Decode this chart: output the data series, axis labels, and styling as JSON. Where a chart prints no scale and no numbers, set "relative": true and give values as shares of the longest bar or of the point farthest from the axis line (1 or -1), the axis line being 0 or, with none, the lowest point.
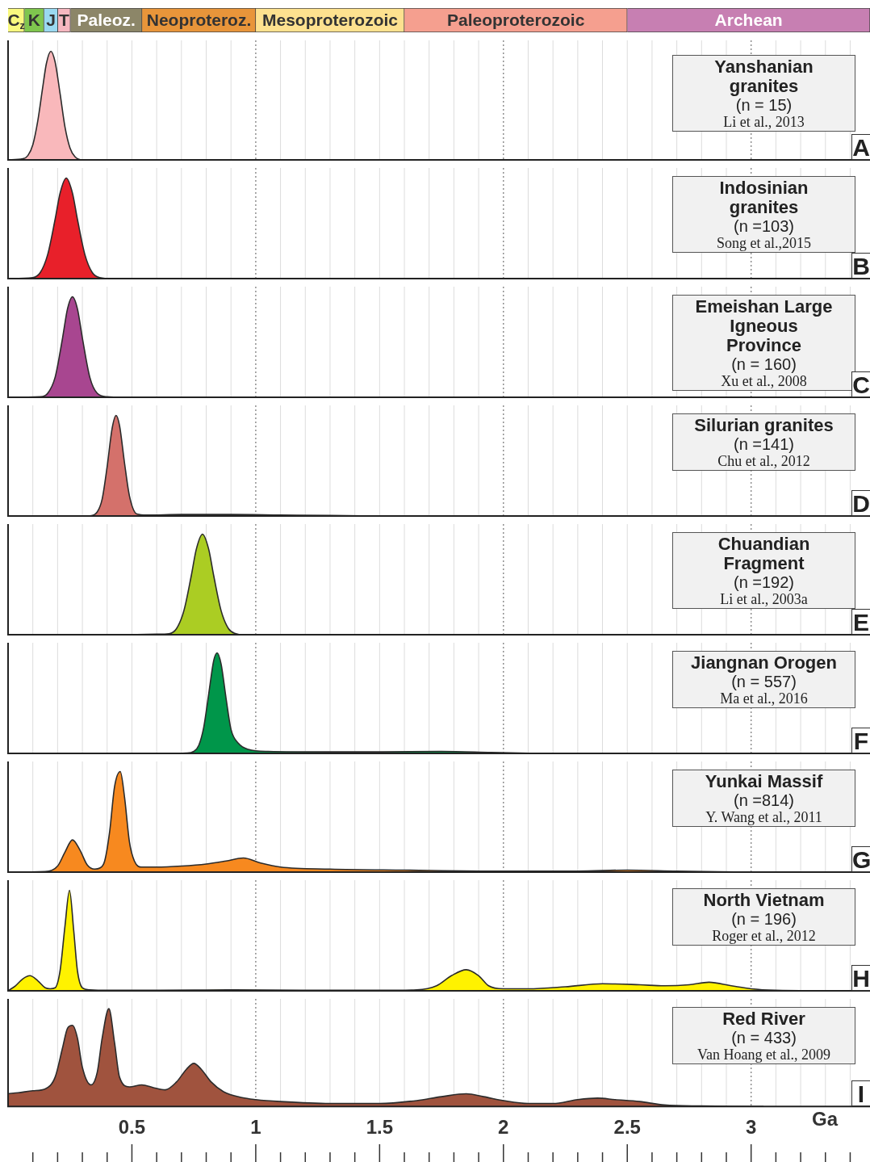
{
  "chart_data": [
    {
      "type": "bar",
      "orientation": "horizontal",
      "stacked": true,
      "categories": [
        null
      ],
      "xlim": [
        0,
        3.48
      ],
      "tick_labels": false,
      "series": [
        {
          "name": "C$_{z}$",
          "color": "#f9f97f",
          "values": [
            0.066
          ]
        },
        {
          "name": "K",
          "color": "#7fc64e",
          "values": [
            0.079
          ]
        },
        {
          "name": "J",
          "color": "#9ad9f0",
          "values": [
            0.056
          ]
        },
        {
          "name": "T",
          "color": "#f5b7c0",
          "values": [
            0.051
          ]
        },
        {
          "name": "Paleoz.",
          "color": "#8c8668",
          "values": [
            0.289
          ]
        },
        {
          "name": "Neoproteroz.",
          "color": "#e8953a",
          "values": [
            0.459
          ]
        },
        {
          "name": "Mesoproterozoic",
          "color": "#fde18f",
          "values": [
            0.6
          ]
        },
        {
          "name": "Paleoproterozoic",
          "color": "#f59f8f",
          "values": [
            0.9
          ]
        },
        {
          "name": "Archean",
          "color": "#c77fb2",
          "values": [
            0.98
          ]
        }
      ]
    },
    {
      "type": "area",
      "title": "Yanshanian granites",
      "subtitle": "(n = 15)",
      "annotations": [
        "Li et al., 2013",
        "A"
      ],
      "color": "#f9b8bb",
      "relative": true,
      "xlim": [
        0,
        3.48
      ],
      "grid": "x",
      "tick_labels": false,
      "xticks": [
        {
          "value": 0.1,
          "label": null
        },
        {
          "value": 0.2,
          "label": null
        },
        {
          "value": 0.3,
          "label": null
        },
        {
          "value": 0.4,
          "label": null
        },
        0.5,
        {
          "value": 0.6,
          "label": null
        },
        {
          "value": 0.7,
          "label": null
        },
        {
          "value": 0.8,
          "label": null
        },
        {
          "value": 0.9,
          "label": null
        },
        1,
        {
          "value": 1.1,
          "label": null
        },
        {
          "value": 1.2,
          "label": null
        },
        {
          "value": 1.3,
          "label": null
        },
        {
          "value": 1.4,
          "label": null
        },
        1.5,
        {
          "value": 1.6,
          "label": null
        },
        {
          "value": 1.7,
          "label": null
        },
        {
          "value": 1.8,
          "label": null
        },
        {
          "value": 1.9,
          "label": null
        },
        2,
        {
          "value": 2.1,
          "label": null
        },
        {
          "value": 2.2,
          "label": null
        },
        {
          "value": 2.3,
          "label": null
        },
        {
          "value": 2.4,
          "label": null
        },
        2.5,
        {
          "value": 2.6,
          "label": null
        },
        {
          "value": 2.7,
          "label": null
        },
        {
          "value": 2.8,
          "label": null
        },
        {
          "value": 2.9,
          "label": null
        },
        3,
        {
          "value": 3.1,
          "label": null
        },
        {
          "value": 3.2,
          "label": null
        },
        {
          "value": 3.3,
          "label": null
        },
        {
          "value": 3.4,
          "label": null
        }
      ],
      "x": [
        0,
        0.06,
        0.08,
        0.1,
        0.12,
        0.14,
        0.155,
        0.173,
        0.19,
        0.21,
        0.23,
        0.25,
        0.27,
        0.3,
        0.32
      ],
      "values": [
        0,
        0.01,
        0.04,
        0.14,
        0.36,
        0.67,
        0.89,
        1,
        0.9,
        0.61,
        0.3,
        0.11,
        0.03,
        0,
        0
      ]
    },
    {
      "type": "area",
      "title": "Indosinian granites",
      "subtitle": "(n =103)",
      "annotations": [
        "Song et al.,2015",
        "B"
      ],
      "color": "#e8202a",
      "relative": true,
      "xlim": [
        0,
        3.48
      ],
      "grid": "x",
      "tick_labels": false,
      "xticks": [
        {
          "value": 0.1,
          "label": null
        },
        {
          "value": 0.2,
          "label": null
        },
        {
          "value": 0.3,
          "label": null
        },
        {
          "value": 0.4,
          "label": null
        },
        0.5,
        {
          "value": 0.6,
          "label": null
        },
        {
          "value": 0.7,
          "label": null
        },
        {
          "value": 0.8,
          "label": null
        },
        {
          "value": 0.9,
          "label": null
        },
        1,
        {
          "value": 1.1,
          "label": null
        },
        {
          "value": 1.2,
          "label": null
        },
        {
          "value": 1.3,
          "label": null
        },
        {
          "value": 1.4,
          "label": null
        },
        1.5,
        {
          "value": 1.6,
          "label": null
        },
        {
          "value": 1.7,
          "label": null
        },
        {
          "value": 1.8,
          "label": null
        },
        {
          "value": 1.9,
          "label": null
        },
        2,
        {
          "value": 2.1,
          "label": null
        },
        {
          "value": 2.2,
          "label": null
        },
        {
          "value": 2.3,
          "label": null
        },
        {
          "value": 2.4,
          "label": null
        },
        2.5,
        {
          "value": 2.6,
          "label": null
        },
        {
          "value": 2.7,
          "label": null
        },
        {
          "value": 2.8,
          "label": null
        },
        {
          "value": 2.9,
          "label": null
        },
        3,
        {
          "value": 3.1,
          "label": null
        },
        {
          "value": 3.2,
          "label": null
        },
        {
          "value": 3.3,
          "label": null
        },
        {
          "value": 3.4,
          "label": null
        }
      ],
      "x": [
        0,
        0.1,
        0.13,
        0.16,
        0.19,
        0.21,
        0.235,
        0.26,
        0.28,
        0.31,
        0.34,
        0.37,
        0.42,
        0.49
      ],
      "values": [
        0,
        0.01,
        0.06,
        0.24,
        0.59,
        0.85,
        1,
        0.85,
        0.59,
        0.24,
        0.06,
        0.01,
        0,
        0
      ]
    },
    {
      "type": "area",
      "title": "Emeishan Large Igneous Province",
      "subtitle": "(n = 160)",
      "annotations": [
        "Xu et al., 2008",
        "C"
      ],
      "color": "#a84690",
      "relative": true,
      "xlim": [
        0,
        3.48
      ],
      "grid": "x",
      "tick_labels": false,
      "xticks": [
        {
          "value": 0.1,
          "label": null
        },
        {
          "value": 0.2,
          "label": null
        },
        {
          "value": 0.3,
          "label": null
        },
        {
          "value": 0.4,
          "label": null
        },
        0.5,
        {
          "value": 0.6,
          "label": null
        },
        {
          "value": 0.7,
          "label": null
        },
        {
          "value": 0.8,
          "label": null
        },
        {
          "value": 0.9,
          "label": null
        },
        1,
        {
          "value": 1.1,
          "label": null
        },
        {
          "value": 1.2,
          "label": null
        },
        {
          "value": 1.3,
          "label": null
        },
        {
          "value": 1.4,
          "label": null
        },
        1.5,
        {
          "value": 1.6,
          "label": null
        },
        {
          "value": 1.7,
          "label": null
        },
        {
          "value": 1.8,
          "label": null
        },
        {
          "value": 1.9,
          "label": null
        },
        2,
        {
          "value": 2.1,
          "label": null
        },
        {
          "value": 2.2,
          "label": null
        },
        {
          "value": 2.3,
          "label": null
        },
        {
          "value": 2.4,
          "label": null
        },
        2.5,
        {
          "value": 2.6,
          "label": null
        },
        {
          "value": 2.7,
          "label": null
        },
        {
          "value": 2.8,
          "label": null
        },
        {
          "value": 2.9,
          "label": null
        },
        3,
        {
          "value": 3.1,
          "label": null
        },
        {
          "value": 3.2,
          "label": null
        },
        {
          "value": 3.3,
          "label": null
        },
        {
          "value": 3.4,
          "label": null
        }
      ],
      "x": [
        0,
        0.13,
        0.16,
        0.19,
        0.22,
        0.24,
        0.26,
        0.28,
        0.3,
        0.33,
        0.36,
        0.4,
        0.48
      ],
      "values": [
        0,
        0.005,
        0.04,
        0.2,
        0.59,
        0.88,
        1,
        0.88,
        0.59,
        0.2,
        0.04,
        0.005,
        0
      ]
    },
    {
      "type": "area",
      "title": "Silurian granites",
      "subtitle": "(n =141)",
      "annotations": [
        "Chu et al., 2012",
        "D"
      ],
      "color": "#d4716b",
      "relative": true,
      "xlim": [
        0,
        3.48
      ],
      "grid": "x",
      "tick_labels": false,
      "xticks": [
        {
          "value": 0.1,
          "label": null
        },
        {
          "value": 0.2,
          "label": null
        },
        {
          "value": 0.3,
          "label": null
        },
        {
          "value": 0.4,
          "label": null
        },
        0.5,
        {
          "value": 0.6,
          "label": null
        },
        {
          "value": 0.7,
          "label": null
        },
        {
          "value": 0.8,
          "label": null
        },
        {
          "value": 0.9,
          "label": null
        },
        1,
        {
          "value": 1.1,
          "label": null
        },
        {
          "value": 1.2,
          "label": null
        },
        {
          "value": 1.3,
          "label": null
        },
        {
          "value": 1.4,
          "label": null
        },
        1.5,
        {
          "value": 1.6,
          "label": null
        },
        {
          "value": 1.7,
          "label": null
        },
        {
          "value": 1.8,
          "label": null
        },
        {
          "value": 1.9,
          "label": null
        },
        2,
        {
          "value": 2.1,
          "label": null
        },
        {
          "value": 2.2,
          "label": null
        },
        {
          "value": 2.3,
          "label": null
        },
        {
          "value": 2.4,
          "label": null
        },
        2.5,
        {
          "value": 2.6,
          "label": null
        },
        {
          "value": 2.7,
          "label": null
        },
        {
          "value": 2.8,
          "label": null
        },
        {
          "value": 2.9,
          "label": null
        },
        3,
        {
          "value": 3.1,
          "label": null
        },
        {
          "value": 3.2,
          "label": null
        },
        {
          "value": 3.3,
          "label": null
        },
        {
          "value": 3.4,
          "label": null
        }
      ],
      "x": [
        0.28,
        0.33,
        0.36,
        0.38,
        0.4,
        0.42,
        0.436,
        0.45,
        0.47,
        0.49,
        0.52,
        0.56,
        0.7,
        0.9,
        1.1,
        1.3,
        1.45
      ],
      "values": [
        0,
        0.002,
        0.04,
        0.17,
        0.49,
        0.87,
        1,
        0.9,
        0.53,
        0.2,
        0.02,
        0.01,
        0.015,
        0.015,
        0.01,
        0.005,
        0
      ]
    },
    {
      "type": "area",
      "title": "Chuandian Fragment",
      "subtitle": "(n =192)",
      "annotations": [
        "Li et al., 2003a",
        "E"
      ],
      "color": "#abcd23",
      "relative": true,
      "xlim": [
        0,
        3.48
      ],
      "grid": "x",
      "tick_labels": false,
      "xticks": [
        {
          "value": 0.1,
          "label": null
        },
        {
          "value": 0.2,
          "label": null
        },
        {
          "value": 0.3,
          "label": null
        },
        {
          "value": 0.4,
          "label": null
        },
        0.5,
        {
          "value": 0.6,
          "label": null
        },
        {
          "value": 0.7,
          "label": null
        },
        {
          "value": 0.8,
          "label": null
        },
        {
          "value": 0.9,
          "label": null
        },
        1,
        {
          "value": 1.1,
          "label": null
        },
        {
          "value": 1.2,
          "label": null
        },
        {
          "value": 1.3,
          "label": null
        },
        {
          "value": 1.4,
          "label": null
        },
        1.5,
        {
          "value": 1.6,
          "label": null
        },
        {
          "value": 1.7,
          "label": null
        },
        {
          "value": 1.8,
          "label": null
        },
        {
          "value": 1.9,
          "label": null
        },
        2,
        {
          "value": 2.1,
          "label": null
        },
        {
          "value": 2.2,
          "label": null
        },
        {
          "value": 2.3,
          "label": null
        },
        {
          "value": 2.4,
          "label": null
        },
        2.5,
        {
          "value": 2.6,
          "label": null
        },
        {
          "value": 2.7,
          "label": null
        },
        {
          "value": 2.8,
          "label": null
        },
        {
          "value": 2.9,
          "label": null
        },
        3,
        {
          "value": 3.1,
          "label": null
        },
        {
          "value": 3.2,
          "label": null
        },
        {
          "value": 3.3,
          "label": null
        },
        {
          "value": 3.4,
          "label": null
        }
      ],
      "x": [
        0.48,
        0.6,
        0.65,
        0.68,
        0.71,
        0.74,
        0.76,
        0.785,
        0.81,
        0.83,
        0.86,
        0.89,
        0.92,
        0.95,
        0.99
      ],
      "values": [
        0,
        0.005,
        0.01,
        0.06,
        0.24,
        0.59,
        0.85,
        1,
        0.85,
        0.59,
        0.24,
        0.06,
        0.01,
        0,
        0
      ]
    },
    {
      "type": "area",
      "title": "Jiangnan Orogen",
      "subtitle": "(n = 557)",
      "annotations": [
        "Ma et al., 2016",
        "F"
      ],
      "color": "#00964a",
      "relative": true,
      "xlim": [
        0,
        3.48
      ],
      "grid": "x",
      "tick_labels": false,
      "xticks": [
        {
          "value": 0.1,
          "label": null
        },
        {
          "value": 0.2,
          "label": null
        },
        {
          "value": 0.3,
          "label": null
        },
        {
          "value": 0.4,
          "label": null
        },
        0.5,
        {
          "value": 0.6,
          "label": null
        },
        {
          "value": 0.7,
          "label": null
        },
        {
          "value": 0.8,
          "label": null
        },
        {
          "value": 0.9,
          "label": null
        },
        1,
        {
          "value": 1.1,
          "label": null
        },
        {
          "value": 1.2,
          "label": null
        },
        {
          "value": 1.3,
          "label": null
        },
        {
          "value": 1.4,
          "label": null
        },
        1.5,
        {
          "value": 1.6,
          "label": null
        },
        {
          "value": 1.7,
          "label": null
        },
        {
          "value": 1.8,
          "label": null
        },
        {
          "value": 1.9,
          "label": null
        },
        2,
        {
          "value": 2.1,
          "label": null
        },
        {
          "value": 2.2,
          "label": null
        },
        {
          "value": 2.3,
          "label": null
        },
        {
          "value": 2.4,
          "label": null
        },
        2.5,
        {
          "value": 2.6,
          "label": null
        },
        {
          "value": 2.7,
          "label": null
        },
        {
          "value": 2.8,
          "label": null
        },
        {
          "value": 2.9,
          "label": null
        },
        3,
        {
          "value": 3.1,
          "label": null
        },
        {
          "value": 3.2,
          "label": null
        },
        {
          "value": 3.3,
          "label": null
        },
        {
          "value": 3.4,
          "label": null
        }
      ],
      "x": [
        0.62,
        0.72,
        0.75,
        0.77,
        0.79,
        0.81,
        0.83,
        0.844,
        0.86,
        0.88,
        0.9,
        0.93,
        0.97,
        1.05,
        1.3,
        1.5,
        1.75,
        1.95,
        2.14
      ],
      "values": [
        0,
        0.003,
        0.02,
        0.08,
        0.26,
        0.59,
        0.92,
        1,
        0.89,
        0.55,
        0.24,
        0.1,
        0.04,
        0.02,
        0.015,
        0.015,
        0.02,
        0.01,
        0
      ]
    },
    {
      "type": "area",
      "title": "Yunkai Massif",
      "subtitle": "(n =814)",
      "annotations": [
        "Y. Wang et al., 2011",
        "G"
      ],
      "color": "#f7891f",
      "relative": true,
      "xlim": [
        0,
        3.48
      ],
      "grid": "x",
      "tick_labels": false,
      "xticks": [
        {
          "value": 0.1,
          "label": null
        },
        {
          "value": 0.2,
          "label": null
        },
        {
          "value": 0.3,
          "label": null
        },
        {
          "value": 0.4,
          "label": null
        },
        0.5,
        {
          "value": 0.6,
          "label": null
        },
        {
          "value": 0.7,
          "label": null
        },
        {
          "value": 0.8,
          "label": null
        },
        {
          "value": 0.9,
          "label": null
        },
        1,
        {
          "value": 1.1,
          "label": null
        },
        {
          "value": 1.2,
          "label": null
        },
        {
          "value": 1.3,
          "label": null
        },
        {
          "value": 1.4,
          "label": null
        },
        1.5,
        {
          "value": 1.6,
          "label": null
        },
        {
          "value": 1.7,
          "label": null
        },
        {
          "value": 1.8,
          "label": null
        },
        {
          "value": 1.9,
          "label": null
        },
        2,
        {
          "value": 2.1,
          "label": null
        },
        {
          "value": 2.2,
          "label": null
        },
        {
          "value": 2.3,
          "label": null
        },
        {
          "value": 2.4,
          "label": null
        },
        2.5,
        {
          "value": 2.6,
          "label": null
        },
        {
          "value": 2.7,
          "label": null
        },
        {
          "value": 2.8,
          "label": null
        },
        {
          "value": 2.9,
          "label": null
        },
        3,
        {
          "value": 3.1,
          "label": null
        },
        {
          "value": 3.2,
          "label": null
        },
        {
          "value": 3.3,
          "label": null
        },
        {
          "value": 3.4,
          "label": null
        }
      ],
      "x": [
        0,
        0.15,
        0.2,
        0.23,
        0.26,
        0.29,
        0.32,
        0.35,
        0.37,
        0.39,
        0.41,
        0.43,
        0.453,
        0.47,
        0.49,
        0.51,
        0.54,
        0.6,
        0.7,
        0.8,
        0.88,
        0.95,
        1.02,
        1.1,
        1.3,
        1.6,
        2.0,
        2.3,
        2.5,
        2.7,
        3.0
      ],
      "values": [
        0,
        0.005,
        0.06,
        0.2,
        0.32,
        0.22,
        0.07,
        0.03,
        0.04,
        0.11,
        0.4,
        0.85,
        1,
        0.75,
        0.3,
        0.11,
        0.05,
        0.05,
        0.06,
        0.08,
        0.11,
        0.14,
        0.09,
        0.05,
        0.03,
        0.02,
        0.01,
        0.01,
        0.02,
        0.01,
        0
      ]
    },
    {
      "type": "area",
      "title": "North Vietnam",
      "subtitle": "(n = 196)",
      "annotations": [
        "Roger et al., 2012",
        "H"
      ],
      "color": "#fff200",
      "relative": true,
      "xlim": [
        0,
        3.48
      ],
      "grid": "x",
      "tick_labels": false,
      "xticks": [
        {
          "value": 0.1,
          "label": null
        },
        {
          "value": 0.2,
          "label": null
        },
        {
          "value": 0.3,
          "label": null
        },
        {
          "value": 0.4,
          "label": null
        },
        0.5,
        {
          "value": 0.6,
          "label": null
        },
        {
          "value": 0.7,
          "label": null
        },
        {
          "value": 0.8,
          "label": null
        },
        {
          "value": 0.9,
          "label": null
        },
        1,
        {
          "value": 1.1,
          "label": null
        },
        {
          "value": 1.2,
          "label": null
        },
        {
          "value": 1.3,
          "label": null
        },
        {
          "value": 1.4,
          "label": null
        },
        1.5,
        {
          "value": 1.6,
          "label": null
        },
        {
          "value": 1.7,
          "label": null
        },
        {
          "value": 1.8,
          "label": null
        },
        {
          "value": 1.9,
          "label": null
        },
        2,
        {
          "value": 2.1,
          "label": null
        },
        {
          "value": 2.2,
          "label": null
        },
        {
          "value": 2.3,
          "label": null
        },
        {
          "value": 2.4,
          "label": null
        },
        2.5,
        {
          "value": 2.6,
          "label": null
        },
        {
          "value": 2.7,
          "label": null
        },
        {
          "value": 2.8,
          "label": null
        },
        {
          "value": 2.9,
          "label": null
        },
        3,
        {
          "value": 3.1,
          "label": null
        },
        {
          "value": 3.2,
          "label": null
        },
        {
          "value": 3.3,
          "label": null
        },
        {
          "value": 3.4,
          "label": null
        }
      ],
      "x": [
        0,
        0.03,
        0.06,
        0.088,
        0.12,
        0.15,
        0.17,
        0.19,
        0.21,
        0.23,
        0.248,
        0.265,
        0.28,
        0.3,
        0.33,
        0.4,
        0.6,
        0.9,
        1.2,
        1.5,
        1.65,
        1.73,
        1.79,
        1.85,
        1.9,
        1.94,
        2.0,
        2.1,
        2.25,
        2.4,
        2.55,
        2.65,
        2.75,
        2.83,
        2.92,
        3.0,
        3.1,
        3.3
      ],
      "values": [
        0,
        0.05,
        0.12,
        0.15,
        0.1,
        0.03,
        0.02,
        0.03,
        0.2,
        0.65,
        1,
        0.6,
        0.2,
        0.03,
        0.01,
        0.005,
        0.005,
        0.01,
        0.005,
        0.005,
        0.01,
        0.05,
        0.15,
        0.21,
        0.15,
        0.05,
        0.02,
        0.02,
        0.04,
        0.07,
        0.06,
        0.05,
        0.06,
        0.085,
        0.05,
        0.02,
        0.005,
        0
      ]
    },
    {
      "type": "area",
      "title": "Red River",
      "subtitle": "(n = 433)",
      "annotations": [
        "Van Hoang et al., 2009",
        "I"
      ],
      "color": "#a0533e",
      "relative": true,
      "xlim": [
        0,
        3.48
      ],
      "grid": "x",
      "tick_labels": "x",
      "xlabel": "Ga",
      "xticks": [
        {
          "value": 0.1,
          "label": null
        },
        {
          "value": 0.2,
          "label": null
        },
        {
          "value": 0.3,
          "label": null
        },
        {
          "value": 0.4,
          "label": null
        },
        0.5,
        {
          "value": 0.6,
          "label": null
        },
        {
          "value": 0.7,
          "label": null
        },
        {
          "value": 0.8,
          "label": null
        },
        {
          "value": 0.9,
          "label": null
        },
        1,
        {
          "value": 1.1,
          "label": null
        },
        {
          "value": 1.2,
          "label": null
        },
        {
          "value": 1.3,
          "label": null
        },
        {
          "value": 1.4,
          "label": null
        },
        1.5,
        {
          "value": 1.6,
          "label": null
        },
        {
          "value": 1.7,
          "label": null
        },
        {
          "value": 1.8,
          "label": null
        },
        {
          "value": 1.9,
          "label": null
        },
        2,
        {
          "value": 2.1,
          "label": null
        },
        {
          "value": 2.2,
          "label": null
        },
        {
          "value": 2.3,
          "label": null
        },
        {
          "value": 2.4,
          "label": null
        },
        2.5,
        {
          "value": 2.6,
          "label": null
        },
        {
          "value": 2.7,
          "label": null
        },
        {
          "value": 2.8,
          "label": null
        },
        {
          "value": 2.9,
          "label": null
        },
        3,
        {
          "value": 3.1,
          "label": null
        },
        {
          "value": 3.2,
          "label": null
        },
        {
          "value": 3.3,
          "label": null
        },
        {
          "value": 3.4,
          "label": null
        }
      ],
      "x": [
        0,
        0.04,
        0.1,
        0.15,
        0.19,
        0.22,
        0.24,
        0.26,
        0.28,
        0.3,
        0.335,
        0.36,
        0.38,
        0.407,
        0.43,
        0.45,
        0.49,
        0.54,
        0.59,
        0.635,
        0.68,
        0.72,
        0.75,
        0.78,
        0.82,
        0.87,
        0.945,
        1.0,
        1.1,
        1.3,
        1.5,
        1.65,
        1.75,
        1.85,
        1.92,
        2.0,
        2.1,
        2.2,
        2.3,
        2.38,
        2.45,
        2.55,
        2.65,
        2.8,
        3.0,
        3.05
      ],
      "values": [
        0.13,
        0.14,
        0.16,
        0.18,
        0.3,
        0.6,
        0.8,
        0.83,
        0.7,
        0.4,
        0.22,
        0.35,
        0.7,
        1,
        0.65,
        0.3,
        0.2,
        0.22,
        0.19,
        0.17,
        0.25,
        0.38,
        0.44,
        0.38,
        0.25,
        0.15,
        0.09,
        0.07,
        0.05,
        0.03,
        0.03,
        0.06,
        0.1,
        0.13,
        0.1,
        0.06,
        0.03,
        0.03,
        0.07,
        0.085,
        0.07,
        0.05,
        0.015,
        0.005,
        0,
        0
      ]
    }
  ]
}
